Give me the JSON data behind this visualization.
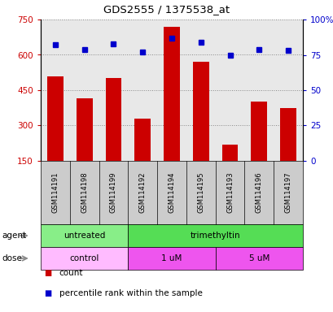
{
  "title": "GDS2555 / 1375538_at",
  "samples": [
    "GSM114191",
    "GSM114198",
    "GSM114199",
    "GSM114192",
    "GSM114194",
    "GSM114195",
    "GSM114193",
    "GSM114196",
    "GSM114197"
  ],
  "counts": [
    510,
    415,
    500,
    330,
    720,
    570,
    220,
    400,
    375
  ],
  "percentiles": [
    82,
    79,
    83,
    77,
    87,
    84,
    75,
    79,
    78
  ],
  "ylim_left": [
    150,
    750
  ],
  "ylim_right": [
    0,
    100
  ],
  "yticks_left": [
    150,
    300,
    450,
    600,
    750
  ],
  "yticks_right": [
    0,
    25,
    50,
    75,
    100
  ],
  "bar_color": "#cc0000",
  "dot_color": "#0000cc",
  "grid_color": "#444444",
  "agent_groups": [
    {
      "label": "untreated",
      "start": 0,
      "end": 3,
      "color": "#88ee88"
    },
    {
      "label": "trimethyltin",
      "start": 3,
      "end": 9,
      "color": "#55dd55"
    }
  ],
  "dose_groups": [
    {
      "label": "control",
      "start": 0,
      "end": 3,
      "color": "#ffbbff"
    },
    {
      "label": "1 uM",
      "start": 3,
      "end": 6,
      "color": "#ee55ee"
    },
    {
      "label": "5 uM",
      "start": 6,
      "end": 9,
      "color": "#ee55ee"
    }
  ],
  "legend_count_color": "#cc0000",
  "legend_dot_color": "#0000cc",
  "bg_color": "#ffffff",
  "tick_label_color_left": "#cc0000",
  "tick_label_color_right": "#0000cc",
  "sample_bg": "#cccccc"
}
